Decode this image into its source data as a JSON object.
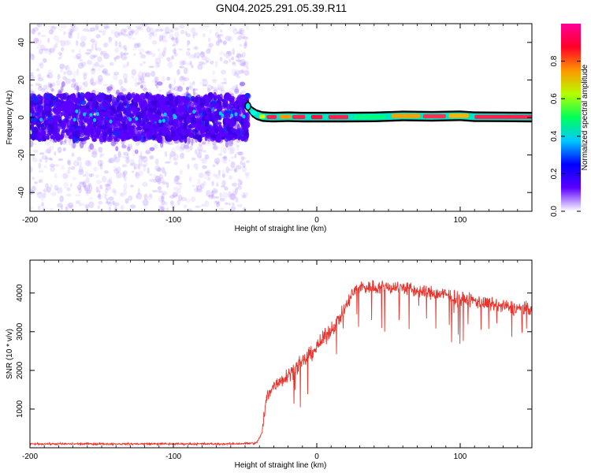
{
  "title": "GN04.2025.291.05.39.R11",
  "chart_data": [
    {
      "type": "heatmap",
      "name": "spectrogram",
      "xlabel": "Height of straight line (km)",
      "ylabel": "Frequency (Hz)",
      "xlim": [
        -200,
        150
      ],
      "ylim": [
        -50,
        50
      ],
      "xticks": [
        -200,
        -100,
        0,
        100
      ],
      "xtick_labels": [
        "-200",
        "-100",
        "0",
        "100"
      ],
      "yticks": [
        -40,
        -20,
        0,
        20,
        40
      ],
      "ytick_labels": [
        "-40",
        "-20",
        "0",
        "20",
        "40"
      ],
      "noise_region_x": [
        -200,
        -48
      ],
      "noise_band_hz": [
        -12,
        12
      ],
      "signal_trace": {
        "x": [
          -49,
          -47,
          -45,
          -42,
          -38,
          -34,
          -30,
          -25,
          -20,
          -15,
          -10,
          0,
          20,
          40,
          60,
          80,
          100,
          110,
          150
        ],
        "freq_hz": [
          7,
          5,
          3,
          1.5,
          0.5,
          0.3,
          0.2,
          0.3,
          0.4,
          0.3,
          0.2,
          0.2,
          0.2,
          0.3,
          0.8,
          0.6,
          0.9,
          0.4,
          0.2
        ]
      },
      "colorbar": {
        "label": "Normalized spectral amplitude",
        "range": [
          0,
          1
        ],
        "ticks": [
          0.0,
          0.2,
          0.4,
          0.6,
          0.8
        ],
        "tick_labels": [
          "0.0",
          "0.2",
          "0.4",
          "0.6",
          "0.8"
        ],
        "colors": [
          "#ffffff",
          "#5a00ff",
          "#0000ff",
          "#00c8ff",
          "#00ff5a",
          "#b4ff00",
          "#ff9600",
          "#ff0028",
          "#ff0096"
        ]
      }
    },
    {
      "type": "line",
      "name": "snr",
      "xlabel": "Height of straight line (km)",
      "ylabel": "SNR (10 * v/v)",
      "xlim": [
        -200,
        150
      ],
      "ylim": [
        0,
        4850
      ],
      "xticks": [
        -200,
        -100,
        0,
        100
      ],
      "xtick_labels": [
        "-200",
        "-100",
        "0",
        "100"
      ],
      "yticks": [
        1000,
        2000,
        3000,
        4000
      ],
      "ytick_labels": [
        "1000",
        "2000",
        "3000",
        "4000"
      ],
      "color": "#e8342c",
      "x": [
        -200,
        -150,
        -100,
        -60,
        -42,
        -38,
        -35,
        -30,
        -20,
        -10,
        0,
        10,
        20,
        25,
        30,
        40,
        50,
        60,
        70,
        80,
        90,
        100,
        110,
        120,
        130,
        140,
        150
      ],
      "y": [
        100,
        100,
        100,
        100,
        120,
        400,
        1300,
        1600,
        1900,
        2200,
        2600,
        3050,
        3600,
        4000,
        4150,
        4150,
        4150,
        4150,
        4050,
        4000,
        3950,
        3850,
        3800,
        3700,
        3650,
        3600,
        3600
      ]
    }
  ]
}
